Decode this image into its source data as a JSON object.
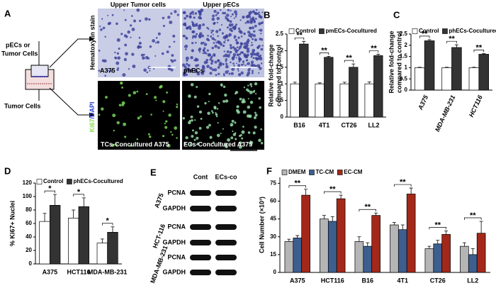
{
  "panels": {
    "A": {
      "label": "A",
      "col1": "Upper Tumor cells",
      "col2": "Upper   pECs",
      "row1": "Hematoxylin stain",
      "row2a": "Ki67",
      "row2b": "/DAPI",
      "img1": "A375",
      "img2": "phECs",
      "img3": "TCs-Concultured  A375",
      "img4": "ECs-Concultured A375",
      "upper": [
        "pECs or",
        "Tumor Cells"
      ],
      "lower": "Tumor Cells"
    },
    "E": {
      "label": "E",
      "cols": [
        "Cont",
        "ECs-co"
      ],
      "rows": [
        "PCNA",
        "GAPDH",
        "PCNA",
        "GAPDH",
        "PCNA",
        "GAPDH"
      ],
      "lines": [
        "A375",
        "HCT-116",
        "MDA-MB-231"
      ]
    }
  },
  "chart_data": [
    {
      "type": "bar",
      "label": "B",
      "y_label": [
        "Relative fold-change",
        "compared to control"
      ],
      "categories": [
        "B16",
        "4T1",
        "CT26",
        "LL2"
      ],
      "series": [
        {
          "name": "Control",
          "color": "#ffffff",
          "values": [
            1.0,
            1.0,
            1.0,
            1.0
          ],
          "errors": [
            0.05,
            0.03,
            0.05,
            0.06
          ]
        },
        {
          "name": "pmECs-Cocultured",
          "color": "#333333",
          "values": [
            2.2,
            1.8,
            1.5,
            1.85
          ],
          "errors": [
            0.08,
            0.03,
            0.1,
            0.04
          ]
        }
      ],
      "annotations": [
        "**",
        "**",
        "**",
        "**"
      ],
      "ylim": [
        0,
        2.5
      ],
      "yticks": [
        0,
        0.5,
        1,
        1.5,
        2,
        2.5
      ]
    },
    {
      "type": "bar",
      "label": "C",
      "y_label": [
        "Relative fold-change",
        "compared to control"
      ],
      "categories": [
        "A375",
        "MDA-MB-231",
        "HCT116"
      ],
      "series": [
        {
          "name": "Control",
          "color": "#ffffff",
          "values": [
            1.0,
            1.0,
            1.0
          ],
          "errors": [
            0.02,
            0.02,
            0.02
          ]
        },
        {
          "name": "phECs-Cocultured",
          "color": "#333333",
          "values": [
            2.2,
            1.9,
            1.6
          ],
          "errors": [
            0.05,
            0.12,
            0.03
          ]
        }
      ],
      "annotations": [
        "**",
        "**",
        "**"
      ],
      "ylim": [
        0,
        2.5
      ],
      "yticks": [
        0,
        0.5,
        1,
        1.5,
        2,
        2.5
      ]
    },
    {
      "type": "bar",
      "label": "D",
      "y_label": [
        "% Ki67+ Nuclei"
      ],
      "categories": [
        "A375",
        "HCT116",
        "MDA-MB-231"
      ],
      "series": [
        {
          "name": "Control",
          "color": "#ffffff",
          "values": [
            63,
            68,
            31
          ],
          "errors": [
            12,
            12,
            6
          ]
        },
        {
          "name": "phECs-Cocultured",
          "color": "#333333",
          "values": [
            87,
            85,
            47
          ],
          "errors": [
            16,
            13,
            8
          ]
        }
      ],
      "annotations": [
        "*",
        "*",
        "*"
      ],
      "ylim": [
        0,
        120
      ],
      "yticks": [
        0,
        20,
        40,
        60,
        80,
        100,
        120
      ]
    },
    {
      "type": "bar",
      "label": "F",
      "y_label": [
        "Cell Number (×10³)"
      ],
      "categories": [
        "A375",
        "HCT116",
        "B16",
        "4T1",
        "CT26",
        "LL2"
      ],
      "series": [
        {
          "name": "DMEM",
          "color": "#b5b5b5",
          "values": [
            26,
            45,
            26,
            40,
            20,
            22
          ],
          "errors": [
            2,
            3,
            4,
            2,
            2,
            3
          ]
        },
        {
          "name": "TC-CM",
          "color": "#3d5f8f",
          "values": [
            29,
            43,
            22,
            36,
            24,
            15
          ],
          "errors": [
            2,
            4,
            3,
            4,
            3,
            5
          ]
        },
        {
          "name": "EC-CM",
          "color": "#a3281a",
          "values": [
            65,
            62,
            48,
            66,
            32,
            33
          ],
          "errors": [
            5,
            3,
            2,
            5,
            3,
            10
          ]
        }
      ],
      "annotations": [
        "**",
        "**",
        "**",
        "**",
        "**",
        "**"
      ],
      "ylim": [
        0,
        80
      ],
      "yticks": [
        0,
        15,
        30,
        45,
        60,
        75
      ]
    }
  ]
}
